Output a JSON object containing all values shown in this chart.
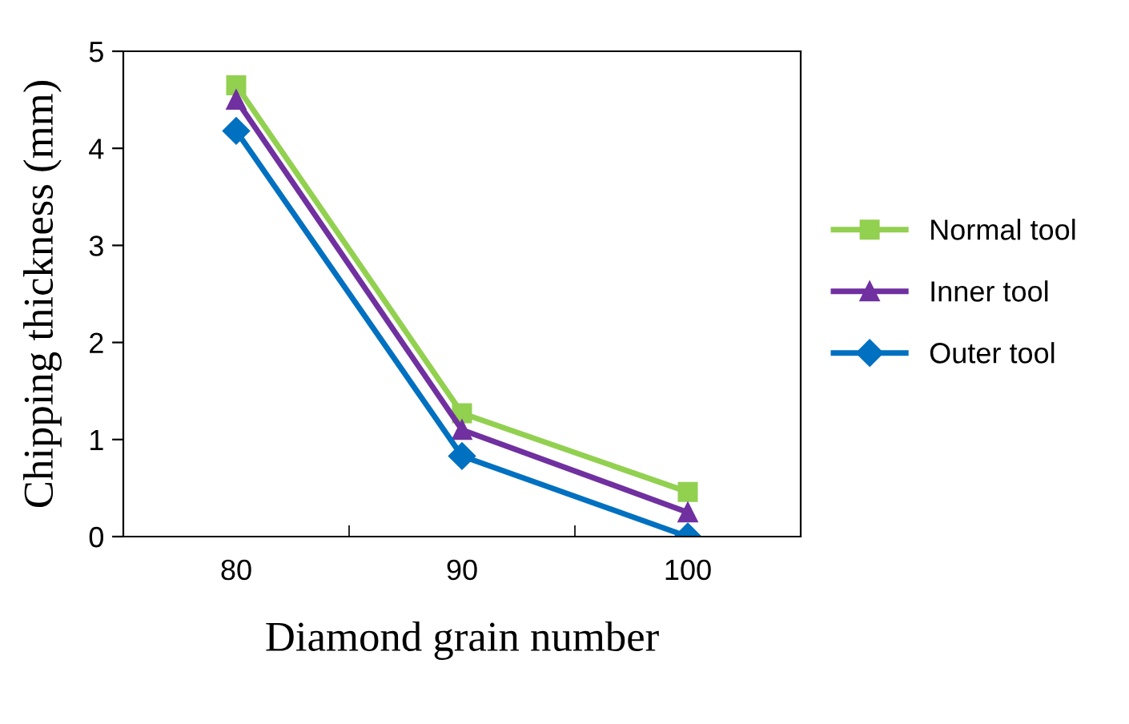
{
  "chart_data": {
    "type": "line",
    "xlabel": "Diamond grain number",
    "ylabel": "Chipping thickness (mm)",
    "categories": [
      "80",
      "90",
      "100"
    ],
    "series": [
      {
        "name": "Normal tool",
        "color": "#92d050",
        "marker": "square",
        "values": [
          4.65,
          1.27,
          0.46
        ]
      },
      {
        "name": "Inner tool",
        "color": "#7030a0",
        "marker": "triangle",
        "values": [
          4.5,
          1.1,
          0.25
        ]
      },
      {
        "name": "Outer tool",
        "color": "#0070c0",
        "marker": "diamond",
        "values": [
          4.18,
          0.83,
          0.0
        ]
      }
    ],
    "ylim": [
      0,
      5
    ],
    "yticks": [
      0,
      1,
      2,
      3,
      4,
      5
    ],
    "grid": false,
    "legend": "right"
  }
}
